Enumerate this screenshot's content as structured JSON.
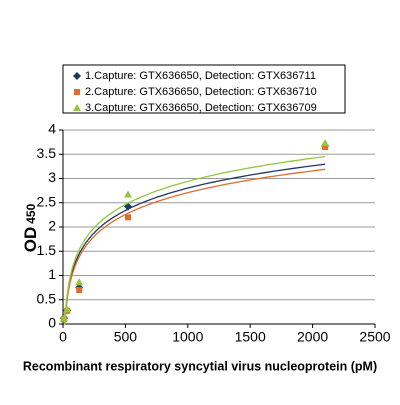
{
  "chart_data": {
    "type": "scatter",
    "x_label": "Recombinant respiratory syncytial virus nucleoprotein (pM)",
    "y_label": "OD",
    "y_label_subscript": "450",
    "trendline": "log",
    "x": [
      8,
      33,
      130,
      521,
      2100
    ],
    "series": [
      {
        "name": "1.Capture: GTX636650, Detection: GTX636711",
        "color": "#1f3864",
        "marker": "diamond",
        "values": [
          0.12,
          0.28,
          0.75,
          2.42,
          3.67
        ]
      },
      {
        "name": "2.Capture: GTX636650, Detection: GTX636710",
        "color": "#e36c2a",
        "marker": "square",
        "values": [
          0.1,
          0.27,
          0.7,
          2.2,
          3.65
        ]
      },
      {
        "name": "3.Capture: GTX636650, Detection: GTX636709",
        "color": "#92c83e",
        "marker": "triangle",
        "values": [
          0.12,
          0.3,
          0.86,
          2.67,
          3.73
        ]
      }
    ],
    "xlim": [
      0,
      2500
    ],
    "xticks": [
      0,
      500,
      1000,
      1500,
      2000,
      2500
    ],
    "ylim": [
      0,
      4
    ],
    "yticks": [
      0,
      0.5,
      1,
      1.5,
      2,
      2.5,
      3,
      3.5,
      4
    ],
    "grid": true
  }
}
